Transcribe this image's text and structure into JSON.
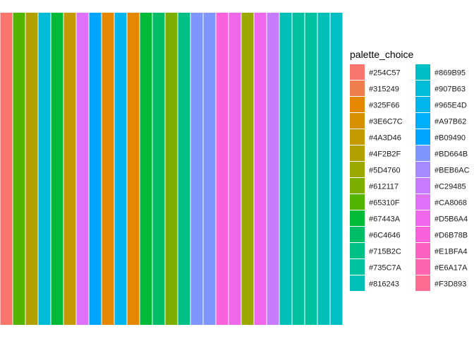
{
  "chart_data": {
    "type": "bar",
    "title": "",
    "xlabel": "",
    "ylabel": "",
    "grid": false,
    "legend_position": "right",
    "legend": {
      "title": "palette_choice",
      "entries": [
        {
          "label": "#254C57",
          "color": "#F8766D"
        },
        {
          "label": "#315249",
          "color": "#F07F4F"
        },
        {
          "label": "#325F66",
          "color": "#E58700"
        },
        {
          "label": "#3E6C7C",
          "color": "#D68F00"
        },
        {
          "label": "#4A3D46",
          "color": "#C59900"
        },
        {
          "label": "#4F2B2F",
          "color": "#B1A000"
        },
        {
          "label": "#5D4760",
          "color": "#9AA800"
        },
        {
          "label": "#612117",
          "color": "#7CAE00"
        },
        {
          "label": "#65310F",
          "color": "#53B400"
        },
        {
          "label": "#67443A",
          "color": "#00BA38"
        },
        {
          "label": "#6C4646",
          "color": "#00BE67"
        },
        {
          "label": "#715B2C",
          "color": "#00C085"
        },
        {
          "label": "#735C7A",
          "color": "#00C19F"
        },
        {
          "label": "#816243",
          "color": "#00C0B8"
        },
        {
          "label": "#869B95",
          "color": "#00BFC4"
        },
        {
          "label": "#907B63",
          "color": "#00BCD8"
        },
        {
          "label": "#965E4D",
          "color": "#00B5EC"
        },
        {
          "label": "#A97B62",
          "color": "#00AEFA"
        },
        {
          "label": "#B09490",
          "color": "#00A5FF"
        },
        {
          "label": "#BD664B",
          "color": "#7F96FF"
        },
        {
          "label": "#BEB6AC",
          "color": "#A58AFF"
        },
        {
          "label": "#C29485",
          "color": "#C77CFF"
        },
        {
          "label": "#CA8068",
          "color": "#DF70F8"
        },
        {
          "label": "#D5B6A4",
          "color": "#EF67EB"
        },
        {
          "label": "#D6B78B",
          "color": "#FA62DB"
        },
        {
          "label": "#E1BFA4",
          "color": "#FF61C3"
        },
        {
          "label": "#E6A17A",
          "color": "#FF64B0"
        },
        {
          "label": "#F3D893",
          "color": "#FF6C92"
        }
      ]
    },
    "bar_colors": [
      "#F8766D",
      "#53B400",
      "#B1A000",
      "#00BCD8",
      "#00BA38",
      "#C59900",
      "#DF70F8",
      "#00A5FF",
      "#E58700",
      "#00B5EC",
      "#E58700",
      "#00BA38",
      "#00BE67",
      "#7CAE00",
      "#00C085",
      "#7F96FF",
      "#7F96FF",
      "#FA62DB",
      "#EF67EB",
      "#9AA800",
      "#EF67EB",
      "#C77CFF",
      "#00C0B8",
      "#00C19F",
      "#00C19F",
      "#00C0B8",
      "#00BFC4"
    ]
  }
}
